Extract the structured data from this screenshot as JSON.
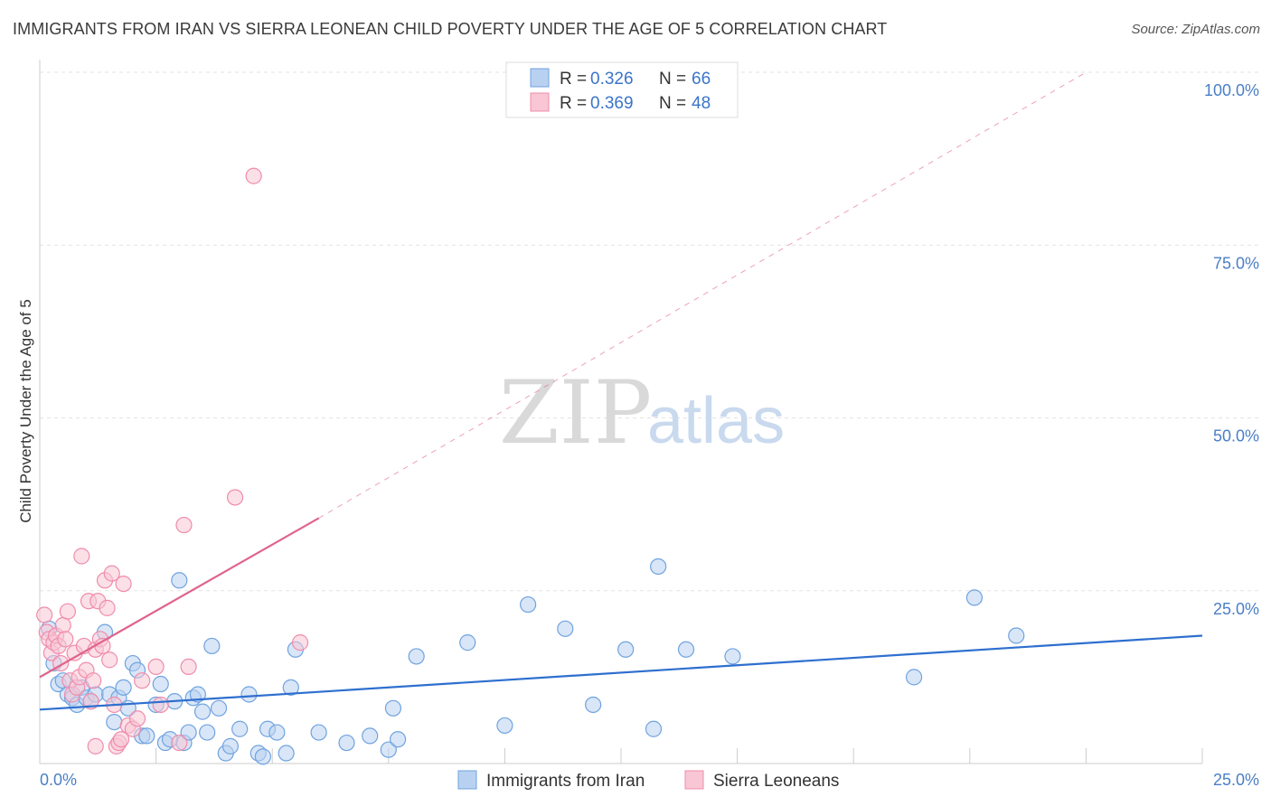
{
  "chart_data": {
    "type": "scatter",
    "title": "IMMIGRANTS FROM IRAN VS SIERRA LEONEAN CHILD POVERTY UNDER THE AGE OF 5 CORRELATION CHART",
    "source": "Source: ZipAtlas.com",
    "xlabel": "",
    "ylabel": "Child Poverty Under the Age of 5",
    "xlim": [
      0,
      25
    ],
    "ylim": [
      0,
      100
    ],
    "x_tick_labels": [
      "0.0%",
      "25.0%"
    ],
    "y_ticks": [
      25,
      50,
      75,
      100
    ],
    "y_tick_labels": [
      "25.0%",
      "50.0%",
      "75.0%",
      "100.0%"
    ],
    "watermark": {
      "zip": "ZIP",
      "atlas": "atlas"
    },
    "legend_top": [
      {
        "r_label": "R =",
        "r_value": "0.326",
        "n_label": "N =",
        "n_value": "66"
      },
      {
        "r_label": "R =",
        "r_value": "0.369",
        "n_label": "N =",
        "n_value": "48"
      }
    ],
    "series": [
      {
        "name": "Immigrants from Iran",
        "color": "#6fa3e0",
        "fill": "#b9d1f1",
        "line_color": "#2e6fcf",
        "trend": {
          "x0": 0,
          "y0": 7.8,
          "x1": 25,
          "y1": 18.5
        },
        "points": [
          [
            0.2,
            19.5
          ],
          [
            0.3,
            14.5
          ],
          [
            0.4,
            11.5
          ],
          [
            0.5,
            12.0
          ],
          [
            0.6,
            10.0
          ],
          [
            0.7,
            9.5
          ],
          [
            0.8,
            8.5
          ],
          [
            0.9,
            11.0
          ],
          [
            1.0,
            9.5
          ],
          [
            1.1,
            9.0
          ],
          [
            1.2,
            10.0
          ],
          [
            1.4,
            19.0
          ],
          [
            1.5,
            10.0
          ],
          [
            1.6,
            6.0
          ],
          [
            1.7,
            9.5
          ],
          [
            1.8,
            11.0
          ],
          [
            1.9,
            8.0
          ],
          [
            2.0,
            14.5
          ],
          [
            2.1,
            13.5
          ],
          [
            2.2,
            4.0
          ],
          [
            2.3,
            4.0
          ],
          [
            2.5,
            8.5
          ],
          [
            2.6,
            11.5
          ],
          [
            2.7,
            3.0
          ],
          [
            2.8,
            3.5
          ],
          [
            2.9,
            9.0
          ],
          [
            3.0,
            26.5
          ],
          [
            3.1,
            3.0
          ],
          [
            3.2,
            4.5
          ],
          [
            3.3,
            9.5
          ],
          [
            3.4,
            10.0
          ],
          [
            3.5,
            7.5
          ],
          [
            3.6,
            4.5
          ],
          [
            3.7,
            17.0
          ],
          [
            3.85,
            8.0
          ],
          [
            4.0,
            1.5
          ],
          [
            4.1,
            2.5
          ],
          [
            4.3,
            5.0
          ],
          [
            4.5,
            10.0
          ],
          [
            4.7,
            1.5
          ],
          [
            4.8,
            1.0
          ],
          [
            4.9,
            5.0
          ],
          [
            5.1,
            4.5
          ],
          [
            5.3,
            1.5
          ],
          [
            5.4,
            11.0
          ],
          [
            5.5,
            16.5
          ],
          [
            6.0,
            4.5
          ],
          [
            6.6,
            3.0
          ],
          [
            7.1,
            4.0
          ],
          [
            7.5,
            2.0
          ],
          [
            7.6,
            8.0
          ],
          [
            7.7,
            3.5
          ],
          [
            8.1,
            15.5
          ],
          [
            9.2,
            17.5
          ],
          [
            10.0,
            5.5
          ],
          [
            10.5,
            23.0
          ],
          [
            11.3,
            19.5
          ],
          [
            11.9,
            8.5
          ],
          [
            12.6,
            16.5
          ],
          [
            13.2,
            5.0
          ],
          [
            13.3,
            28.5
          ],
          [
            13.9,
            16.5
          ],
          [
            14.9,
            15.5
          ],
          [
            18.8,
            12.5
          ],
          [
            20.1,
            24.0
          ],
          [
            21.0,
            18.5
          ]
        ]
      },
      {
        "name": "Sierra Leoneans",
        "color": "#f08cab",
        "fill": "#f8c6d5",
        "line_color": "#e0648c",
        "trend": {
          "x0": 0,
          "y0": 12.5,
          "x1": 6.0,
          "y1": 35.5
        },
        "trend_extension": {
          "x0": 6.0,
          "y0": 35.5,
          "x1": 22.5,
          "y1": 100
        },
        "points": [
          [
            0.1,
            21.5
          ],
          [
            0.15,
            19.0
          ],
          [
            0.2,
            18.0
          ],
          [
            0.25,
            16.0
          ],
          [
            0.3,
            17.5
          ],
          [
            0.35,
            18.5
          ],
          [
            0.4,
            17.0
          ],
          [
            0.45,
            14.5
          ],
          [
            0.5,
            20.0
          ],
          [
            0.55,
            18.0
          ],
          [
            0.6,
            22.0
          ],
          [
            0.65,
            12.0
          ],
          [
            0.7,
            10.0
          ],
          [
            0.75,
            16.0
          ],
          [
            0.8,
            11.0
          ],
          [
            0.85,
            12.5
          ],
          [
            0.9,
            30.0
          ],
          [
            0.95,
            17.0
          ],
          [
            1.0,
            13.5
          ],
          [
            1.05,
            23.5
          ],
          [
            1.1,
            9.0
          ],
          [
            1.15,
            12.0
          ],
          [
            1.2,
            16.5
          ],
          [
            1.25,
            23.5
          ],
          [
            1.3,
            18.0
          ],
          [
            1.35,
            17.0
          ],
          [
            1.4,
            26.5
          ],
          [
            1.45,
            22.5
          ],
          [
            1.5,
            15.0
          ],
          [
            1.55,
            27.5
          ],
          [
            1.6,
            8.5
          ],
          [
            1.65,
            2.5
          ],
          [
            1.7,
            3.0
          ],
          [
            1.75,
            3.5
          ],
          [
            1.8,
            26.0
          ],
          [
            1.9,
            5.5
          ],
          [
            2.0,
            5.0
          ],
          [
            2.1,
            6.5
          ],
          [
            2.2,
            12.0
          ],
          [
            2.5,
            14.0
          ],
          [
            2.6,
            8.5
          ],
          [
            3.0,
            3.0
          ],
          [
            3.1,
            34.5
          ],
          [
            3.2,
            14.0
          ],
          [
            4.2,
            38.5
          ],
          [
            4.6,
            85.0
          ],
          [
            5.6,
            17.5
          ],
          [
            1.2,
            2.5
          ]
        ]
      }
    ]
  }
}
